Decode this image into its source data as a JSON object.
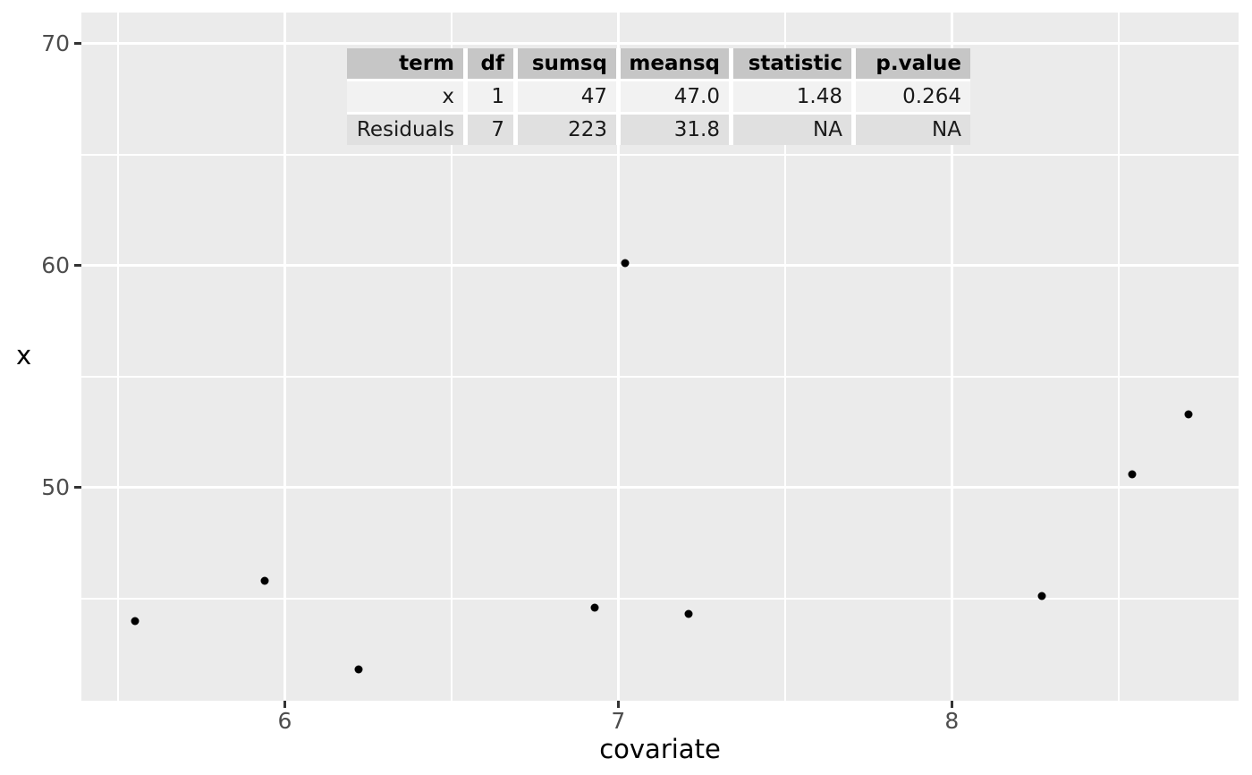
{
  "chart_data": {
    "type": "scatter",
    "title": "",
    "xlabel": "covariate",
    "ylabel": "x",
    "xlim": [
      5.39,
      8.86
    ],
    "ylim": [
      40.4,
      71.4
    ],
    "x_ticks": [
      6,
      7,
      8
    ],
    "x_minor_ticks": [
      5.5,
      6.5,
      7.5,
      8.5
    ],
    "y_ticks": [
      50,
      60,
      70
    ],
    "y_minor_ticks": [
      45,
      55,
      65
    ],
    "grid": true,
    "legend_position": "none",
    "points": [
      {
        "x": 5.55,
        "y": 44.0
      },
      {
        "x": 5.94,
        "y": 45.8
      },
      {
        "x": 6.22,
        "y": 41.8
      },
      {
        "x": 6.93,
        "y": 44.6
      },
      {
        "x": 7.02,
        "y": 60.1
      },
      {
        "x": 7.21,
        "y": 44.3
      },
      {
        "x": 8.27,
        "y": 45.1
      },
      {
        "x": 8.54,
        "y": 50.6
      },
      {
        "x": 8.71,
        "y": 53.3
      }
    ]
  },
  "anova_table": {
    "headers": [
      "term",
      "df",
      "sumsq",
      "meansq",
      "statistic",
      "p.value"
    ],
    "rows": [
      [
        "x",
        "1",
        "47",
        "47.0",
        "1.48",
        "0.264"
      ],
      [
        "Residuals",
        "7",
        "223",
        "31.8",
        "NA",
        "NA"
      ]
    ]
  },
  "colors": {
    "panel_bg": "#EBEBEB",
    "grid": "#FFFFFF",
    "point": "#000000",
    "tick_text": "#4D4D4D",
    "axis_title": "#000000",
    "tick_mark": "#333333",
    "table_header_bg": "#C6C6C6",
    "table_row1_bg": "#F2F2F2",
    "table_row2_bg": "#E0E0E0"
  }
}
